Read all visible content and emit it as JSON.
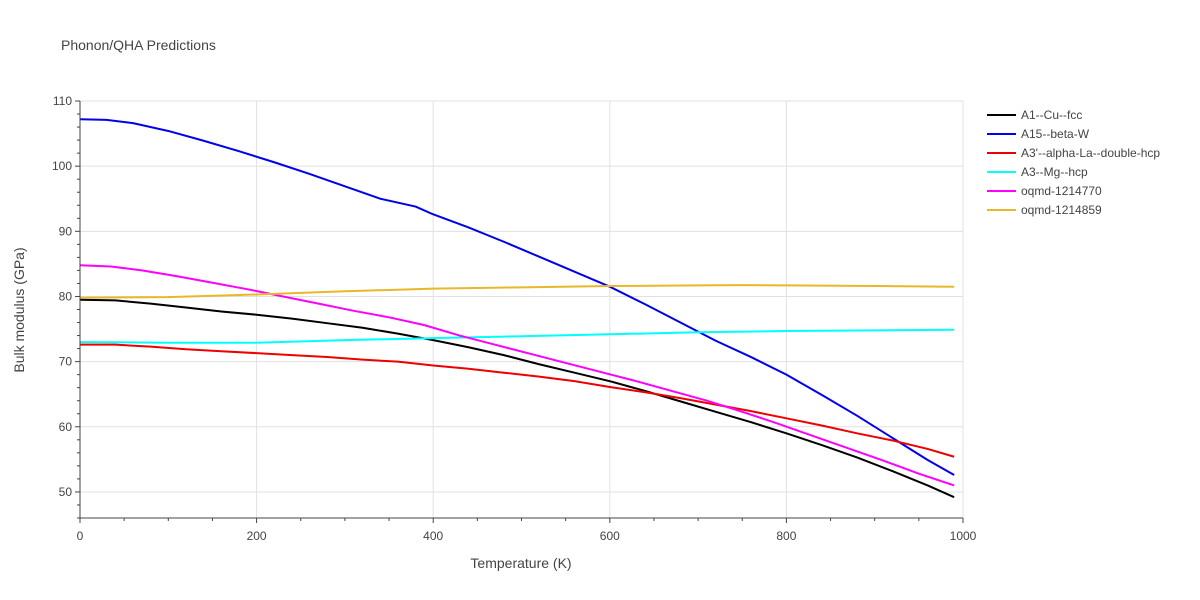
{
  "chart_data": {
    "type": "line",
    "title": "Phonon/QHA Predictions",
    "xlabel": "Temperature (K)",
    "ylabel": "Bulk modulus (GPa)",
    "xlim": [
      0,
      1000
    ],
    "ylim": [
      46,
      110
    ],
    "x_ticks": [
      0,
      200,
      400,
      600,
      800,
      1000
    ],
    "y_ticks": [
      50,
      60,
      70,
      80,
      90,
      100,
      110
    ],
    "grid": true,
    "legend_position": "top-right",
    "series": [
      {
        "name": "A1--Cu--fcc",
        "color": "#000000",
        "points": [
          [
            0,
            79.5
          ],
          [
            40,
            79.4
          ],
          [
            80,
            78.9
          ],
          [
            120,
            78.3
          ],
          [
            160,
            77.7
          ],
          [
            200,
            77.2
          ],
          [
            240,
            76.6
          ],
          [
            280,
            75.9
          ],
          [
            320,
            75.2
          ],
          [
            360,
            74.3
          ],
          [
            400,
            73.3
          ],
          [
            440,
            72.2
          ],
          [
            480,
            71.0
          ],
          [
            520,
            69.6
          ],
          [
            560,
            68.3
          ],
          [
            600,
            67.0
          ],
          [
            640,
            65.5
          ],
          [
            680,
            63.9
          ],
          [
            720,
            62.3
          ],
          [
            760,
            60.7
          ],
          [
            800,
            59.0
          ],
          [
            840,
            57.2
          ],
          [
            880,
            55.3
          ],
          [
            920,
            53.2
          ],
          [
            960,
            51.0
          ],
          [
            990,
            49.2
          ]
        ]
      },
      {
        "name": "A15--beta-W",
        "color": "#0000ee",
        "points": [
          [
            0,
            107.2
          ],
          [
            30,
            107.1
          ],
          [
            60,
            106.6
          ],
          [
            100,
            105.4
          ],
          [
            140,
            103.9
          ],
          [
            180,
            102.3
          ],
          [
            220,
            100.6
          ],
          [
            260,
            98.8
          ],
          [
            300,
            96.9
          ],
          [
            340,
            95.0
          ],
          [
            380,
            93.8
          ],
          [
            400,
            92.6
          ],
          [
            440,
            90.6
          ],
          [
            480,
            88.4
          ],
          [
            520,
            86.1
          ],
          [
            560,
            83.8
          ],
          [
            600,
            81.5
          ],
          [
            640,
            78.8
          ],
          [
            680,
            76.0
          ],
          [
            720,
            73.2
          ],
          [
            760,
            70.7
          ],
          [
            800,
            68.0
          ],
          [
            840,
            64.9
          ],
          [
            880,
            61.7
          ],
          [
            920,
            58.3
          ],
          [
            960,
            54.9
          ],
          [
            990,
            52.6
          ]
        ]
      },
      {
        "name": "A3'--alpha-La--double-hcp",
        "color": "#ee0000",
        "points": [
          [
            0,
            72.6
          ],
          [
            40,
            72.6
          ],
          [
            80,
            72.3
          ],
          [
            120,
            71.9
          ],
          [
            160,
            71.6
          ],
          [
            200,
            71.3
          ],
          [
            240,
            71.0
          ],
          [
            280,
            70.7
          ],
          [
            320,
            70.3
          ],
          [
            360,
            70.0
          ],
          [
            400,
            69.4
          ],
          [
            440,
            68.9
          ],
          [
            480,
            68.3
          ],
          [
            520,
            67.7
          ],
          [
            560,
            67.0
          ],
          [
            600,
            66.1
          ],
          [
            640,
            65.3
          ],
          [
            680,
            64.4
          ],
          [
            720,
            63.4
          ],
          [
            760,
            62.4
          ],
          [
            800,
            61.3
          ],
          [
            840,
            60.2
          ],
          [
            880,
            59.0
          ],
          [
            920,
            57.9
          ],
          [
            960,
            56.6
          ],
          [
            990,
            55.4
          ]
        ]
      },
      {
        "name": "A3--Mg--hcp",
        "color": "#00ffff",
        "points": [
          [
            0,
            73.0
          ],
          [
            100,
            72.9
          ],
          [
            200,
            72.9
          ],
          [
            300,
            73.3
          ],
          [
            400,
            73.6
          ],
          [
            500,
            73.9
          ],
          [
            600,
            74.2
          ],
          [
            700,
            74.5
          ],
          [
            800,
            74.7
          ],
          [
            900,
            74.8
          ],
          [
            990,
            74.9
          ]
        ]
      },
      {
        "name": "oqmd-1214770",
        "color": "#ff00ff",
        "points": [
          [
            0,
            84.8
          ],
          [
            35,
            84.6
          ],
          [
            70,
            84.0
          ],
          [
            110,
            83.1
          ],
          [
            150,
            82.1
          ],
          [
            190,
            81.1
          ],
          [
            230,
            80.0
          ],
          [
            270,
            78.9
          ],
          [
            310,
            77.8
          ],
          [
            350,
            76.8
          ],
          [
            390,
            75.6
          ],
          [
            430,
            74.0
          ],
          [
            470,
            72.6
          ],
          [
            510,
            71.2
          ],
          [
            550,
            69.8
          ],
          [
            590,
            68.4
          ],
          [
            630,
            67.0
          ],
          [
            670,
            65.5
          ],
          [
            710,
            64.0
          ],
          [
            750,
            62.3
          ],
          [
            790,
            60.5
          ],
          [
            830,
            58.6
          ],
          [
            870,
            56.7
          ],
          [
            910,
            54.8
          ],
          [
            950,
            52.8
          ],
          [
            990,
            51.0
          ]
        ]
      },
      {
        "name": "oqmd-1214859",
        "color": "#e8b82a",
        "points": [
          [
            0,
            79.8
          ],
          [
            100,
            79.9
          ],
          [
            200,
            80.3
          ],
          [
            300,
            80.8
          ],
          [
            400,
            81.2
          ],
          [
            500,
            81.4
          ],
          [
            600,
            81.6
          ],
          [
            700,
            81.7
          ],
          [
            750,
            81.75
          ],
          [
            800,
            81.7
          ],
          [
            900,
            81.6
          ],
          [
            990,
            81.5
          ]
        ]
      }
    ]
  }
}
